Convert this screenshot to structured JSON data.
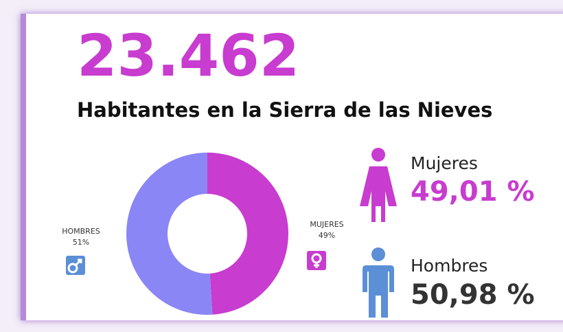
{
  "headline": "23.462",
  "chart_data": {
    "type": "donut",
    "title": "Habitantes en la Sierra de las Nieves",
    "categories": [
      "HOMBRES",
      "MUJERES"
    ],
    "values": [
      51,
      49
    ],
    "value_labels": [
      "51%",
      "49%"
    ],
    "colors": [
      "#8a86f5",
      "#c83ccf"
    ]
  },
  "stats": [
    {
      "label": "Mujeres",
      "value": "49,01 %"
    },
    {
      "label": "Hombres",
      "value": "50,98 %"
    }
  ]
}
